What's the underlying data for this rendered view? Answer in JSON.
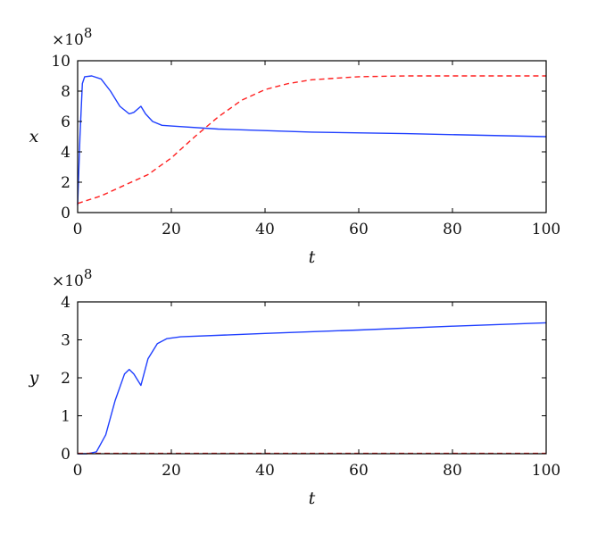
{
  "chart_data": [
    {
      "type": "line",
      "ylabel": "x",
      "xlabel": "t",
      "multiplier": "×10",
      "multiplier_exp": "8",
      "xlim": [
        0,
        100
      ],
      "ylim": [
        0,
        10
      ],
      "xticks": [
        "0",
        "20",
        "40",
        "60",
        "80",
        "100"
      ],
      "yticks": [
        "0",
        "2",
        "4",
        "6",
        "8",
        "10"
      ],
      "series": [
        {
          "name": "solid",
          "color": "#1f3fff",
          "style": "solid",
          "x": [
            0,
            0.5,
            1,
            1.5,
            3,
            5,
            7,
            9,
            11,
            12,
            13.5,
            14.5,
            16,
            18,
            20,
            30,
            50,
            70,
            100
          ],
          "y": [
            0.5,
            5,
            8.5,
            8.95,
            9,
            8.8,
            8,
            7,
            6.5,
            6.6,
            7,
            6.5,
            6,
            5.75,
            5.7,
            5.5,
            5.3,
            5.2,
            5.0
          ]
        },
        {
          "name": "dashed",
          "color": "#ff2020",
          "style": "dashed",
          "x": [
            0,
            5,
            10,
            15,
            20,
            25,
            30,
            35,
            40,
            45,
            50,
            60,
            70,
            100
          ],
          "y": [
            0.6,
            1.1,
            1.8,
            2.5,
            3.6,
            5.0,
            6.3,
            7.4,
            8.1,
            8.5,
            8.75,
            8.95,
            9.0,
            9.0
          ]
        }
      ]
    },
    {
      "type": "line",
      "ylabel": "y",
      "xlabel": "t",
      "multiplier": "×10",
      "multiplier_exp": "8",
      "xlim": [
        0,
        100
      ],
      "ylim": [
        0,
        4
      ],
      "xticks": [
        "0",
        "20",
        "40",
        "60",
        "80",
        "100"
      ],
      "yticks": [
        "0",
        "1",
        "2",
        "3",
        "4"
      ],
      "series": [
        {
          "name": "solid",
          "color": "#1f3fff",
          "style": "solid",
          "x": [
            0,
            2,
            4,
            6,
            8,
            10,
            11,
            12,
            13.5,
            15,
            17,
            19,
            22,
            40,
            60,
            80,
            100
          ],
          "y": [
            0,
            0,
            0.05,
            0.5,
            1.4,
            2.1,
            2.22,
            2.1,
            1.8,
            2.5,
            2.9,
            3.03,
            3.08,
            3.17,
            3.26,
            3.36,
            3.45
          ]
        },
        {
          "name": "dashed",
          "color": "#ff2020",
          "style": "dashed",
          "x": [
            0,
            100
          ],
          "y": [
            0.01,
            0.01
          ]
        }
      ]
    }
  ]
}
